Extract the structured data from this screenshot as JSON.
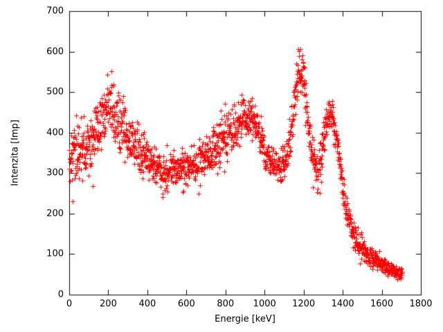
{
  "chart_data": {
    "type": "scatter",
    "title": "",
    "xlabel": "Energie [keV]",
    "ylabel": "Intenzita [Imp]",
    "xlim": [
      0,
      1800
    ],
    "ylim": [
      0,
      700
    ],
    "xticks": [
      0,
      200,
      400,
      600,
      800,
      1000,
      1200,
      1400,
      1600,
      1800
    ],
    "yticks": [
      0,
      100,
      200,
      300,
      400,
      500,
      600,
      700
    ],
    "grid": false,
    "legend": "none",
    "marker": "plus",
    "marker_color": "#ff0000",
    "marker_size": 3,
    "axis_color": "#000000",
    "background": "#ffffff",
    "x_range_data": [
      0,
      1705
    ],
    "x_step": 1,
    "seed": 42,
    "mean_profile": [
      [
        0,
        345
      ],
      [
        60,
        360
      ],
      [
        120,
        380
      ],
      [
        160,
        420
      ],
      [
        190,
        465
      ],
      [
        210,
        470
      ],
      [
        230,
        440
      ],
      [
        260,
        420
      ],
      [
        300,
        390
      ],
      [
        350,
        360
      ],
      [
        400,
        330
      ],
      [
        450,
        315
      ],
      [
        500,
        308
      ],
      [
        550,
        310
      ],
      [
        600,
        318
      ],
      [
        650,
        327
      ],
      [
        700,
        342
      ],
      [
        750,
        362
      ],
      [
        800,
        392
      ],
      [
        850,
        418
      ],
      [
        880,
        430
      ],
      [
        910,
        440
      ],
      [
        935,
        435
      ],
      [
        960,
        418
      ],
      [
        1000,
        350
      ],
      [
        1030,
        325
      ],
      [
        1060,
        315
      ],
      [
        1090,
        322
      ],
      [
        1120,
        345
      ],
      [
        1140,
        420
      ],
      [
        1160,
        510
      ],
      [
        1178,
        558
      ],
      [
        1195,
        552
      ],
      [
        1210,
        480
      ],
      [
        1230,
        390
      ],
      [
        1250,
        330
      ],
      [
        1270,
        303
      ],
      [
        1290,
        330
      ],
      [
        1310,
        400
      ],
      [
        1330,
        450
      ],
      [
        1348,
        443
      ],
      [
        1362,
        400
      ],
      [
        1380,
        335
      ],
      [
        1400,
        258
      ],
      [
        1420,
        200
      ],
      [
        1445,
        155
      ],
      [
        1475,
        130
      ],
      [
        1510,
        105
      ],
      [
        1560,
        88
      ],
      [
        1610,
        72
      ],
      [
        1660,
        60
      ],
      [
        1705,
        52
      ]
    ],
    "sd_profile": [
      [
        0,
        36
      ],
      [
        200,
        38
      ],
      [
        300,
        34
      ],
      [
        450,
        22
      ],
      [
        600,
        25
      ],
      [
        800,
        28
      ],
      [
        920,
        28
      ],
      [
        1050,
        20
      ],
      [
        1120,
        25
      ],
      [
        1180,
        33
      ],
      [
        1260,
        25
      ],
      [
        1330,
        22
      ],
      [
        1420,
        20
      ],
      [
        1500,
        13
      ],
      [
        1600,
        10
      ],
      [
        1705,
        8
      ]
    ]
  }
}
